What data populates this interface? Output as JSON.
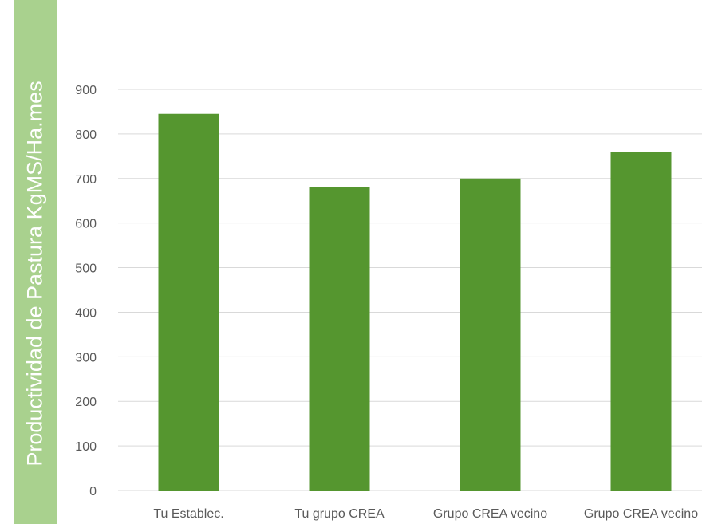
{
  "colors": {
    "bar": "#55962f",
    "ylabel_band": "#a9d18e",
    "ylabel_text": "#ffffff",
    "grid": "#d9d9d9",
    "tick_text": "#595959"
  },
  "chart_data": {
    "type": "bar",
    "title": "",
    "xlabel": "",
    "ylabel": "Productividad de Pastura KgMS/Ha.mes",
    "categories": [
      "Tu Establec.",
      "Tu grupo CREA",
      "Grupo CREA vecino",
      "Grupo CREA vecino"
    ],
    "values": [
      845,
      680,
      700,
      760
    ],
    "ylim": [
      0,
      900
    ],
    "yticks": [
      0,
      100,
      200,
      300,
      400,
      500,
      600,
      700,
      800,
      900
    ],
    "grid": true,
    "legend": "none"
  }
}
